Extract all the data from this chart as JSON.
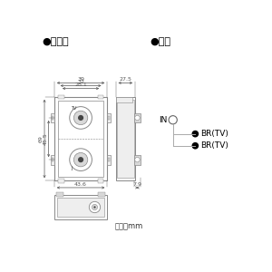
{
  "bg_color": "#ffffff",
  "title_left": "●寸法図",
  "title_right": "●回路",
  "dim_labels_top": [
    "39",
    "32",
    "28.1"
  ],
  "dim_label_side_depth": "27.5",
  "dim_label_height1": "69",
  "dim_label_height2": "45.5",
  "dim_label_width_bottom": "43.6",
  "dim_label_side_small": "7.9",
  "unit_label": "単位：mm",
  "circuit_in_label": "IN",
  "circuit_labels": [
    "BR(TV)",
    "BR(TV)"
  ],
  "line_color": "#888888",
  "dim_line_color": "#555555",
  "text_color": "#333333",
  "black": "#000000",
  "white": "#ffffff",
  "gray_fill": "#d8d8d8",
  "light_gray": "#eeeeee"
}
